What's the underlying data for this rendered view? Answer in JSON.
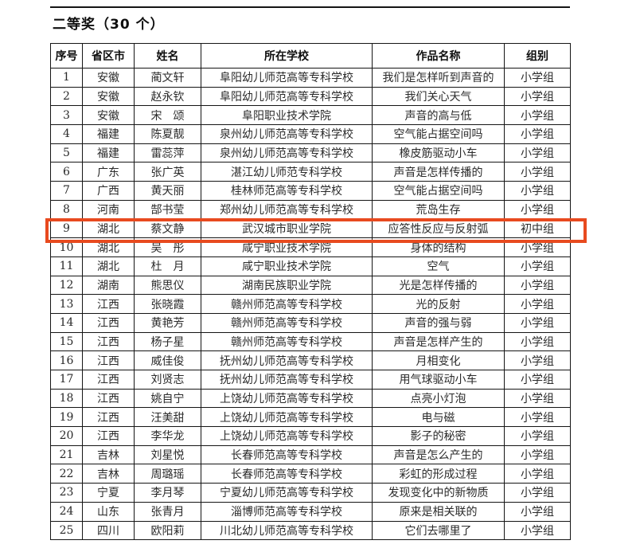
{
  "page": {
    "title": "二等奖（30 个）"
  },
  "table": {
    "columns": [
      {
        "key": "no",
        "label": "序号"
      },
      {
        "key": "prov",
        "label": "省区市"
      },
      {
        "key": "name",
        "label": "姓名"
      },
      {
        "key": "school",
        "label": "所在学校"
      },
      {
        "key": "work",
        "label": "作品名称"
      },
      {
        "key": "group",
        "label": "组别"
      }
    ],
    "rows": [
      {
        "no": "1",
        "prov": "安徽",
        "name": "蔺文轩",
        "school": "阜阳幼儿师范高等专科学校",
        "work": "我们是怎样听到声音的",
        "group": "小学组",
        "highlighted": false
      },
      {
        "no": "2",
        "prov": "安徽",
        "name": "赵永钦",
        "school": "阜阳幼儿师范高等专科学校",
        "work": "我们关心天气",
        "group": "小学组",
        "highlighted": false
      },
      {
        "no": "3",
        "prov": "安徽",
        "name": "宋　颂",
        "school": "阜阳职业技术学院",
        "work": "声音的高与低",
        "group": "小学组",
        "highlighted": false
      },
      {
        "no": "4",
        "prov": "福建",
        "name": "陈夏靓",
        "school": "泉州幼儿师范高等专科学校",
        "work": "空气能占据空间吗",
        "group": "小学组",
        "highlighted": false
      },
      {
        "no": "5",
        "prov": "福建",
        "name": "雷蕊萍",
        "school": "泉州幼儿师范高等专科学校",
        "work": "橡皮筋驱动小车",
        "group": "小学组",
        "highlighted": false
      },
      {
        "no": "6",
        "prov": "广东",
        "name": "张广英",
        "school": "湛江幼儿师范专科学校",
        "work": "声音是怎样传播的",
        "group": "小学组",
        "highlighted": false
      },
      {
        "no": "7",
        "prov": "广西",
        "name": "黄天丽",
        "school": "桂林师范高等专科学校",
        "work": "空气能占据空间吗",
        "group": "小学组",
        "highlighted": false
      },
      {
        "no": "8",
        "prov": "河南",
        "name": "郜书莹",
        "school": "郑州幼儿师范高等专科学校",
        "work": "荒岛生存",
        "group": "小学组",
        "highlighted": false
      },
      {
        "no": "9",
        "prov": "湖北",
        "name": "蔡文静",
        "school": "武汉城市职业学院",
        "work": "应答性反应与反射弧",
        "group": "初中组",
        "highlighted": true
      },
      {
        "no": "10",
        "prov": "湖北",
        "name": "吴　彤",
        "school": "咸宁职业技术学院",
        "work": "身体的结构",
        "group": "小学组",
        "highlighted": false
      },
      {
        "no": "11",
        "prov": "湖北",
        "name": "杜　月",
        "school": "咸宁职业技术学院",
        "work": "空气",
        "group": "小学组",
        "highlighted": false
      },
      {
        "no": "12",
        "prov": "湖南",
        "name": "熊思仪",
        "school": "湖南民族职业学院",
        "work": "光是怎样传播的",
        "group": "小学组",
        "highlighted": false
      },
      {
        "no": "13",
        "prov": "江西",
        "name": "张晓霞",
        "school": "赣州师范高等专科学校",
        "work": "光的反射",
        "group": "小学组",
        "highlighted": false
      },
      {
        "no": "14",
        "prov": "江西",
        "name": "黄艳芳",
        "school": "赣州师范高等专科学校",
        "work": "声音的强与弱",
        "group": "小学组",
        "highlighted": false
      },
      {
        "no": "15",
        "prov": "江西",
        "name": "杨子星",
        "school": "赣州师范高等专科学校",
        "work": "声音是怎样产生的",
        "group": "小学组",
        "highlighted": false
      },
      {
        "no": "16",
        "prov": "江西",
        "name": "威佳俊",
        "school": "抚州幼儿师范高等专科学校",
        "work": "月相变化",
        "group": "小学组",
        "highlighted": false
      },
      {
        "no": "17",
        "prov": "江西",
        "name": "刘贤志",
        "school": "抚州幼儿师范高等专科学校",
        "work": "用气球驱动小车",
        "group": "小学组",
        "highlighted": false
      },
      {
        "no": "18",
        "prov": "江西",
        "name": "姚自宁",
        "school": "上饶幼儿师范高等专科学校",
        "work": "点亮小灯泡",
        "group": "小学组",
        "highlighted": false
      },
      {
        "no": "19",
        "prov": "江西",
        "name": "汪美甜",
        "school": "上饶幼儿师范高等专科学校",
        "work": "电与磁",
        "group": "小学组",
        "highlighted": false
      },
      {
        "no": "20",
        "prov": "江西",
        "name": "李华龙",
        "school": "上饶幼儿师范高等专科学校",
        "work": "影子的秘密",
        "group": "小学组",
        "highlighted": false
      },
      {
        "no": "21",
        "prov": "吉林",
        "name": "刘星悦",
        "school": "长春师范高等专科学校",
        "work": "声音是怎么产生的",
        "group": "小学组",
        "highlighted": false
      },
      {
        "no": "22",
        "prov": "吉林",
        "name": "周璐瑶",
        "school": "长春师范高等专科学校",
        "work": "彩虹的形成过程",
        "group": "小学组",
        "highlighted": false
      },
      {
        "no": "23",
        "prov": "宁夏",
        "name": "李月琴",
        "school": "宁夏幼儿师范高等专科学校",
        "work": "发现变化中的新物质",
        "group": "小学组",
        "highlighted": false
      },
      {
        "no": "24",
        "prov": "山东",
        "name": "张青月",
        "school": "淄博师范高等专科学校",
        "work": "原来是相关联的",
        "group": "小学组",
        "highlighted": false
      },
      {
        "no": "25",
        "prov": "四川",
        "name": "欧阳莉",
        "school": "川北幼儿师范高等专科学校",
        "work": "它们去哪里了",
        "group": "小学组",
        "highlighted": false
      }
    ]
  },
  "highlight": {
    "row_no": "9",
    "color": "#e84a1f"
  }
}
